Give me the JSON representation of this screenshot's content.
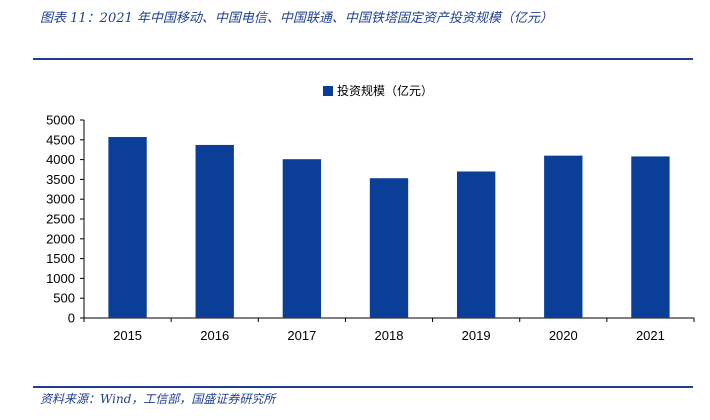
{
  "figure": {
    "title": "图表 11：2021 年中国移动、中国电信、中国联通、中国铁塔固定资产投资规模（亿元）",
    "source": "资料来源：Wind，工信部，国盛证券研究所"
  },
  "chart_data": {
    "type": "bar",
    "categories": [
      "2015",
      "2016",
      "2017",
      "2018",
      "2019",
      "2020",
      "2021"
    ],
    "series": [
      {
        "name": "投资规模（亿元）",
        "values": [
          4570,
          4370,
          4010,
          3530,
          3700,
          4100,
          4080
        ]
      }
    ],
    "ylim": [
      0,
      5000
    ],
    "yticks": [
      0,
      500,
      1000,
      1500,
      2000,
      2500,
      3000,
      3500,
      4000,
      4500,
      5000
    ],
    "grid": false,
    "legend_position": "top-center",
    "bar_color": "#0a3e97"
  }
}
